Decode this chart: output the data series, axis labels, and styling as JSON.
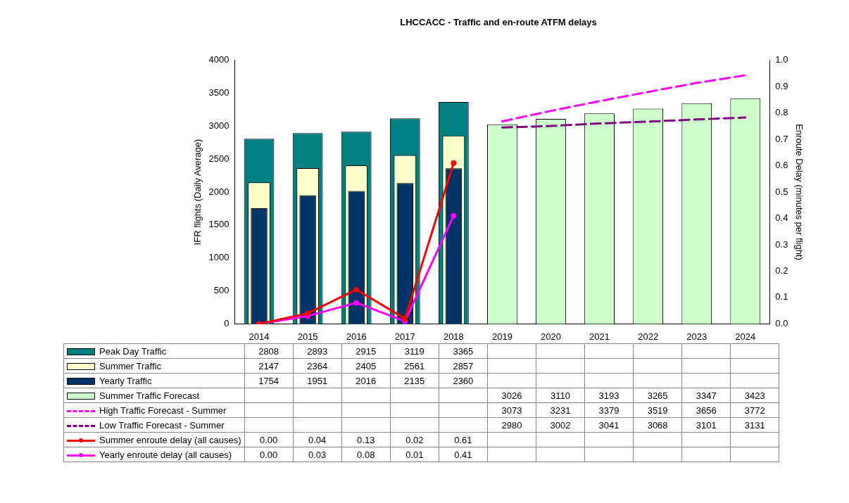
{
  "chart_data": {
    "type": "bar",
    "title": "LHCCACC - Traffic and en-route ATFM delays",
    "ylabel": "IFR flights (Daily Average)",
    "y2label": "Enroute Delay (minutes per flight)",
    "categories": [
      "2014",
      "2015",
      "2016",
      "2017",
      "2018",
      "2019",
      "2020",
      "2021",
      "2022",
      "2023",
      "2024"
    ],
    "ylim": [
      0,
      4000
    ],
    "yticks": [
      0,
      500,
      1000,
      1500,
      2000,
      2500,
      3000,
      3500,
      4000
    ],
    "y2lim": [
      0,
      1
    ],
    "y2ticks": [
      {
        "value": 0,
        "label": "0.0"
      },
      {
        "value": 0.1,
        "label": "0.1"
      },
      {
        "value": 0.2,
        "label": "0.2"
      },
      {
        "value": 0.3,
        "label": "0.3"
      },
      {
        "value": 0.4,
        "label": "0.4"
      },
      {
        "value": 0.5,
        "label": "0.5"
      },
      {
        "value": 0.6,
        "label": "0.6"
      },
      {
        "value": 0.7,
        "label": "0.7"
      },
      {
        "value": 0.8,
        "label": "0.8"
      },
      {
        "value": 0.9,
        "label": "0.9"
      },
      {
        "value": 1,
        "label": "1.0"
      }
    ],
    "grid": false,
    "legend": "bottom",
    "series": [
      {
        "name": "Peak Day Traffic",
        "color": "#008080",
        "values": [
          2808,
          2893,
          2915,
          3119,
          3365,
          null,
          null,
          null,
          null,
          null,
          null
        ],
        "value_labels": [
          "2808",
          "2893",
          "2915",
          "3119",
          "3365",
          null,
          null,
          null,
          null,
          null,
          null
        ]
      },
      {
        "name": "Summer Traffic",
        "color": "#ffffcc",
        "values": [
          2147,
          2364,
          2405,
          2561,
          2857,
          null,
          null,
          null,
          null,
          null,
          null
        ],
        "value_labels": [
          "2147",
          "2364",
          "2405",
          "2561",
          "2857",
          null,
          null,
          null,
          null,
          null,
          null
        ]
      },
      {
        "name": "Yearly Traffic",
        "color": "#003366",
        "values": [
          1754,
          1951,
          2016,
          2135,
          2360,
          null,
          null,
          null,
          null,
          null,
          null
        ],
        "value_labels": [
          "1754",
          "1951",
          "2016",
          "2135",
          "2360",
          null,
          null,
          null,
          null,
          null,
          null
        ]
      },
      {
        "name": "Summer Traffic Forecast",
        "color": "#ccffcc",
        "values": [
          null,
          null,
          null,
          null,
          null,
          3026,
          3110,
          3193,
          3265,
          3347,
          3423
        ],
        "value_labels": [
          null,
          null,
          null,
          null,
          null,
          "3026",
          "3110",
          "3193",
          "3265",
          "3347",
          "3423"
        ]
      },
      {
        "name": "High Traffic Forecast - Summer",
        "type": "line",
        "color": "#ff00ff",
        "line_style": "dashed",
        "marker": "none",
        "values": [
          null,
          null,
          null,
          null,
          null,
          3073,
          3231,
          3379,
          3519,
          3656,
          3772
        ],
        "value_labels": [
          null,
          null,
          null,
          null,
          null,
          "3073",
          "3231",
          "3379",
          "3519",
          "3656",
          "3772"
        ]
      },
      {
        "name": "Low Traffic Forecast - Summer",
        "type": "line",
        "color": "#800080",
        "line_style": "dashed",
        "marker": "none",
        "values": [
          null,
          null,
          null,
          null,
          null,
          2980,
          3002,
          3041,
          3068,
          3101,
          3131
        ],
        "value_labels": [
          null,
          null,
          null,
          null,
          null,
          "2980",
          "3002",
          "3041",
          "3068",
          "3101",
          "3131"
        ]
      },
      {
        "name": "Summer enroute delay (all causes)",
        "type": "line",
        "axis": "y2",
        "color": "#ff0000",
        "line_style": "solid",
        "marker": "circle",
        "values": [
          0,
          0.04,
          0.13,
          0.02,
          0.61,
          null,
          null,
          null,
          null,
          null,
          null
        ],
        "value_labels": [
          "0.00",
          "0.04",
          "0.13",
          "0.02",
          "0.61",
          null,
          null,
          null,
          null,
          null,
          null
        ]
      },
      {
        "name": "Yearly enroute delay (all causes)",
        "type": "line",
        "axis": "y2",
        "color": "#ff00ff",
        "line_style": "solid",
        "marker": "circle",
        "values": [
          0,
          0.03,
          0.08,
          0.01,
          0.41,
          null,
          null,
          null,
          null,
          null,
          null
        ],
        "value_labels": [
          "0.00",
          "0.03",
          "0.08",
          "0.01",
          "0.41",
          null,
          null,
          null,
          null,
          null,
          null
        ]
      }
    ]
  }
}
